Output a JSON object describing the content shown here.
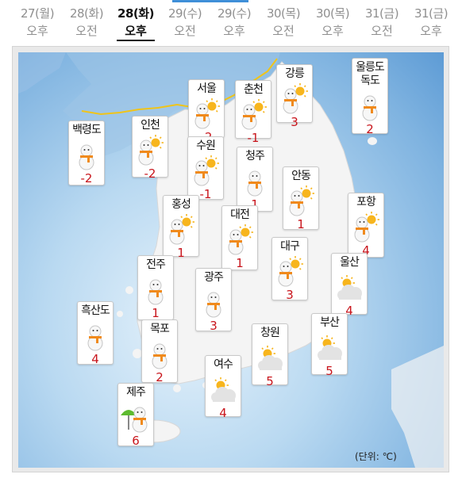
{
  "tabs": [
    {
      "date": "27(월)",
      "period": "오후"
    },
    {
      "date": "28(화)",
      "period": "오전"
    },
    {
      "date": "28(화)",
      "period": "오후",
      "active": true
    },
    {
      "date": "29(수)",
      "period": "오전"
    },
    {
      "date": "29(수)",
      "period": "오후"
    },
    {
      "date": "30(목)",
      "period": "오전"
    },
    {
      "date": "30(목)",
      "period": "오후"
    },
    {
      "date": "31(금)",
      "period": "오전"
    },
    {
      "date": "31(금)",
      "period": "오후"
    }
  ],
  "stations": [
    {
      "name": "서울",
      "temp": "-2",
      "icon": "snowman-sun-icon"
    },
    {
      "name": "춘천",
      "temp": "-1",
      "icon": "snowman-sun-icon"
    },
    {
      "name": "강릉",
      "temp": "3",
      "icon": "snowman-sun-icon"
    },
    {
      "name": "울릉도\n독도",
      "temp": "2",
      "icon": "snowman-icon"
    },
    {
      "name": "백령도",
      "temp": "-2",
      "icon": "snowman-icon"
    },
    {
      "name": "인천",
      "temp": "-2",
      "icon": "snowman-sun-icon"
    },
    {
      "name": "수원",
      "temp": "-1",
      "icon": "snowman-sun-icon"
    },
    {
      "name": "청주",
      "temp": "1",
      "icon": "snowman-icon"
    },
    {
      "name": "안동",
      "temp": "1",
      "icon": "snowman-sun-icon"
    },
    {
      "name": "홍성",
      "temp": "1",
      "icon": "snowman-sun-icon"
    },
    {
      "name": "대전",
      "temp": "1",
      "icon": "snowman-sun-icon"
    },
    {
      "name": "포항",
      "temp": "4",
      "icon": "snowman-sun-icon"
    },
    {
      "name": "대구",
      "temp": "3",
      "icon": "snowman-sun-icon"
    },
    {
      "name": "울산",
      "temp": "4",
      "icon": "sun-cloud-icon"
    },
    {
      "name": "전주",
      "temp": "1",
      "icon": "snowman-icon"
    },
    {
      "name": "광주",
      "temp": "3",
      "icon": "snowman-icon"
    },
    {
      "name": "흑산도",
      "temp": "4",
      "icon": "snowman-icon"
    },
    {
      "name": "목포",
      "temp": "2",
      "icon": "snowman-icon"
    },
    {
      "name": "창원",
      "temp": "5",
      "icon": "sun-cloud-icon"
    },
    {
      "name": "부산",
      "temp": "5",
      "icon": "sun-cloud-icon"
    },
    {
      "name": "여수",
      "temp": "4",
      "icon": "sun-cloud-icon"
    },
    {
      "name": "제주",
      "temp": "6",
      "icon": "snowman-umbrella-icon"
    }
  ],
  "colors": {
    "temperature": "#c8141b",
    "land": "#f4f4f4",
    "border_line": "#f0c419",
    "active_tab": "#111111"
  },
  "unit_label": "(단위: ℃)"
}
